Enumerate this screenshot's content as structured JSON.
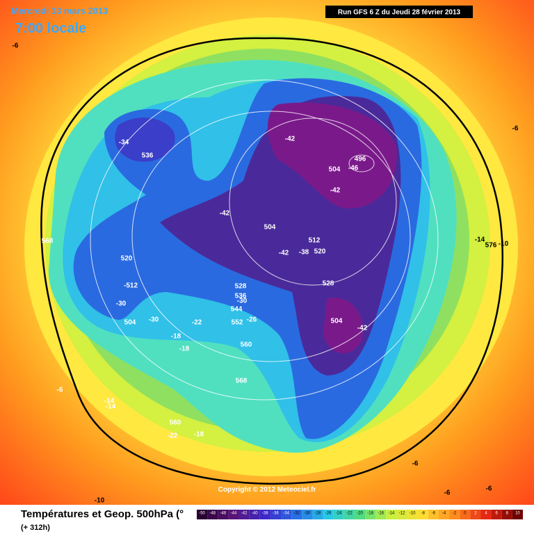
{
  "header": {
    "date": "Mercredi 13 mars 2013",
    "time": "7:00 locale",
    "run": "Run GFS 6 Z du Jeudi 28 février 2013"
  },
  "footer": {
    "title": "Températures et Geop. 500hPa (°",
    "lead": "(+ 312h)",
    "copyright": "Copyright © 2012 Meteociel.fr"
  },
  "colorbar": {
    "ticks": [
      -50,
      -48,
      -46,
      -44,
      -42,
      -40,
      -38,
      -36,
      -34,
      -32,
      -30,
      -28,
      -26,
      -24,
      -22,
      -20,
      -18,
      -16,
      -14,
      -12,
      -10,
      -8,
      -6,
      -4,
      -2,
      0,
      2,
      4,
      6,
      8,
      10
    ]
  },
  "map": {
    "labels": [
      "-6",
      "-34",
      "536",
      "496",
      "-46",
      "504",
      "-42",
      "-42",
      "-42",
      "504",
      "512",
      "-38",
      "520",
      "-42",
      "568",
      "520",
      "-512",
      "528",
      "-30",
      "504",
      "-30",
      "-22",
      "528",
      "536",
      "-30",
      "544",
      "552",
      "-26",
      "504",
      "-42",
      "-18",
      "-18",
      "560",
      "568",
      "-6",
      "-14",
      "-14",
      "560",
      "-22",
      "-18",
      "-14",
      "576",
      "-10",
      "-6",
      "-6",
      "-6",
      "-6",
      "-10"
    ]
  }
}
